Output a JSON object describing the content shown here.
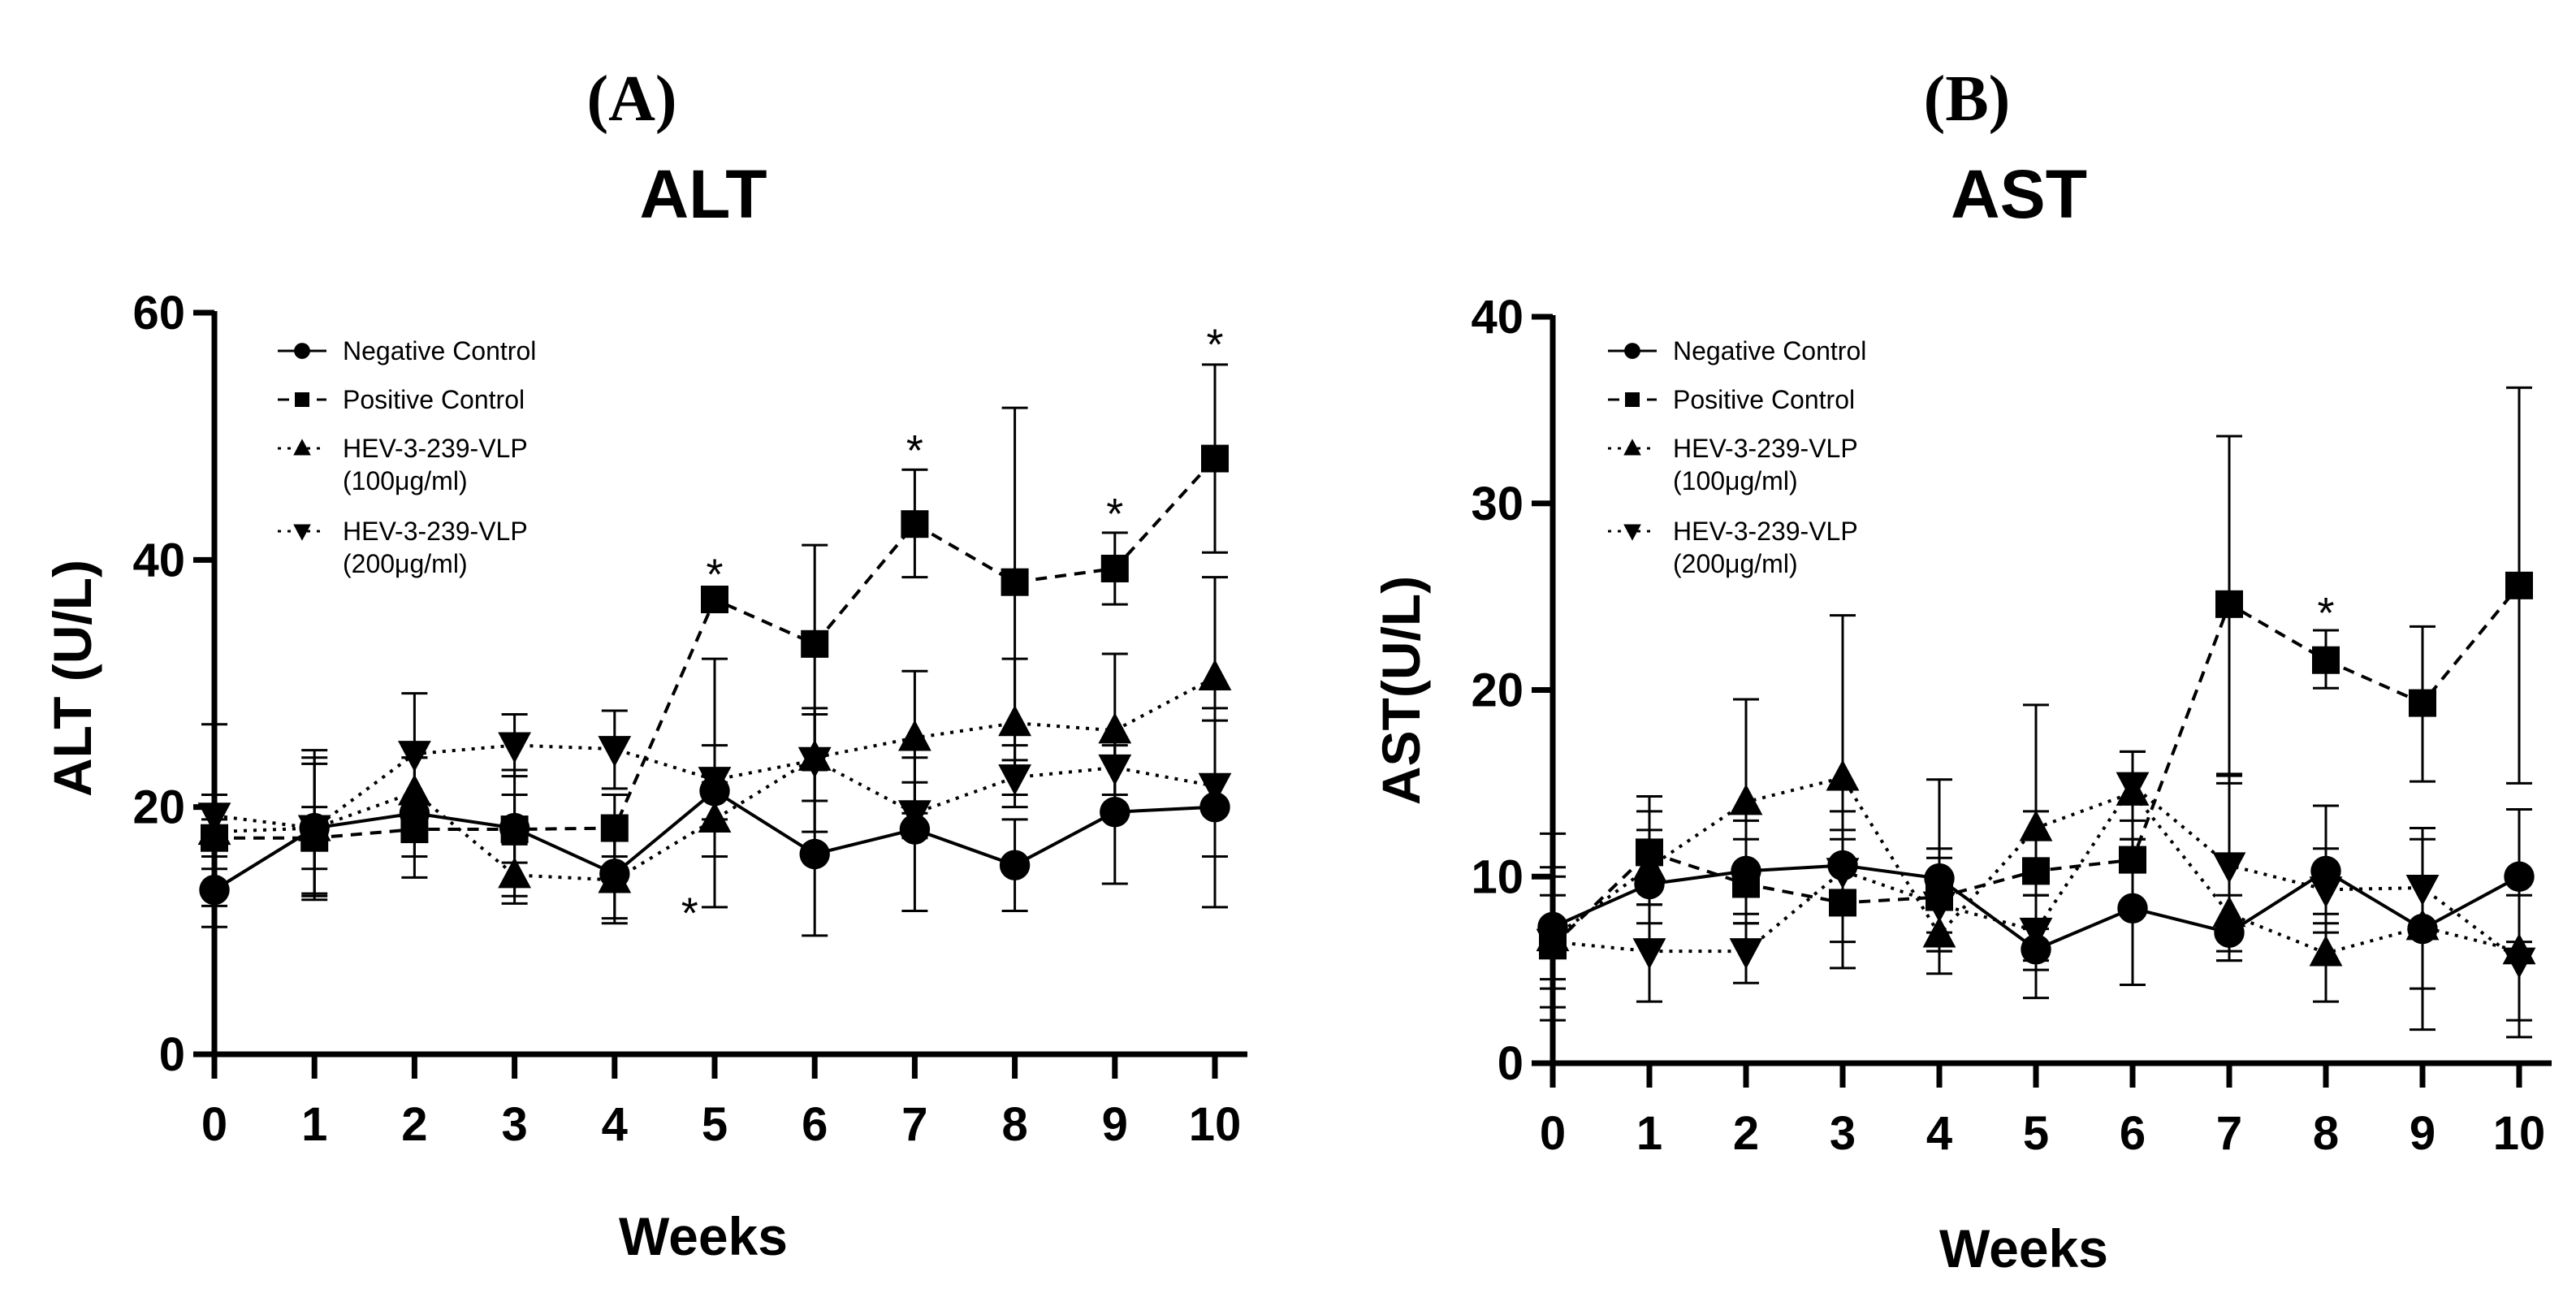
{
  "panels": [
    {
      "label": "(A)"
    },
    {
      "label": "(B)"
    }
  ],
  "chart_data": [
    {
      "type": "line",
      "title": "ALT",
      "xlabel": "Weeks",
      "ylabel": "ALT (U/L)",
      "x": [
        0,
        1,
        2,
        3,
        4,
        5,
        6,
        7,
        8,
        9,
        10
      ],
      "xlim": [
        -0.5,
        10.5
      ],
      "ylim": [
        0,
        60
      ],
      "yticks": [
        0,
        20,
        40,
        60
      ],
      "grid": false,
      "legend_position": "top-left",
      "series": [
        {
          "name": "Negative Control",
          "marker": "circle",
          "line": "solid",
          "values": [
            13.3,
            18.3,
            19.5,
            18.3,
            14.6,
            21.3,
            16.2,
            18.2,
            15.3,
            19.6,
            20.0
          ],
          "err_low": [
            10.3,
            12.8,
            14.3,
            12.8,
            10.6,
            11.9,
            9.6,
            11.6,
            11.6,
            13.8,
            11.9
          ],
          "err_high": [
            16.0,
            24.0,
            24.0,
            23.0,
            18.5,
            32.0,
            23.0,
            24.0,
            19.0,
            25.0,
            28.0
          ]
        },
        {
          "name": "Positive Control",
          "marker": "square",
          "line": "dashed",
          "values": [
            17.5,
            17.5,
            18.2,
            18.2,
            18.3,
            36.8,
            33.2,
            42.9,
            38.2,
            39.3,
            48.2
          ],
          "err_low": [
            16.0,
            15.0,
            16.0,
            15.5,
            16.0,
            36.0,
            24.5,
            38.6,
            23.8,
            36.4,
            40.6
          ],
          "err_high": [
            19.0,
            20.0,
            20.5,
            21.0,
            21.0,
            37.5,
            41.2,
            47.3,
            52.3,
            42.2,
            55.8
          ]
        },
        {
          "name": "HEV-3-239-VLP\n(100μg/ml)",
          "marker": "triangle-up",
          "line": "dotted",
          "values": [
            18.0,
            18.3,
            21.2,
            14.5,
            14.1,
            19.0,
            24.0,
            25.6,
            26.8,
            26.2,
            30.5
          ],
          "err_low": [
            15.0,
            13.0,
            18.5,
            12.2,
            11.0,
            16.0,
            18.0,
            19.5,
            21.0,
            20.0,
            22.5
          ],
          "err_high": [
            21.0,
            23.5,
            24.0,
            17.0,
            17.5,
            22.0,
            28.0,
            31.0,
            32.0,
            32.4,
            38.6
          ]
        },
        {
          "name": "HEV-3-239-VLP\n(200μg/ml)",
          "marker": "triangle-down",
          "line": "dotted",
          "values": [
            19.3,
            18.3,
            24.3,
            25.0,
            24.7,
            22.2,
            23.8,
            19.5,
            22.4,
            23.2,
            21.7
          ],
          "err_low": [
            12.0,
            12.5,
            19.5,
            22.5,
            21.5,
            19.0,
            20.5,
            17.5,
            20.0,
            21.0,
            16.0
          ],
          "err_high": [
            26.7,
            24.6,
            29.2,
            27.5,
            27.8,
            25.0,
            27.5,
            22.0,
            25.0,
            25.5,
            27.0
          ]
        }
      ],
      "annotations": [
        {
          "text": "*",
          "x": 5,
          "y": 40.0
        },
        {
          "text": "*",
          "x": 4.75,
          "y": 12.6
        },
        {
          "text": "*",
          "x": 7,
          "y": 50.0
        },
        {
          "text": "*",
          "x": 9,
          "y": 44.9
        },
        {
          "text": "*",
          "x": 10,
          "y": 58.6
        }
      ]
    },
    {
      "type": "line",
      "title": "AST",
      "xlabel": "Weeks",
      "ylabel": "AST(U/L)",
      "x": [
        0,
        1,
        2,
        3,
        4,
        5,
        6,
        7,
        8,
        9,
        10
      ],
      "xlim": [
        -0.5,
        10.5
      ],
      "ylim": [
        0,
        40
      ],
      "yticks": [
        0,
        10,
        20,
        30,
        40
      ],
      "grid": false,
      "legend_position": "top-left",
      "series": [
        {
          "name": "Negative Control",
          "marker": "circle",
          "line": "solid",
          "values": [
            7.3,
            9.6,
            10.3,
            10.6,
            9.9,
            6.1,
            8.3,
            7.0,
            10.3,
            7.2,
            10.0
          ],
          "err_low": [
            4.5,
            6.5,
            7.5,
            8.0,
            7.0,
            3.5,
            4.2,
            5.5,
            7.0,
            1.8,
            6.5
          ],
          "err_high": [
            10.5,
            12.5,
            13.0,
            13.5,
            15.2,
            9.0,
            12.0,
            9.0,
            13.8,
            12.6,
            13.6
          ]
        },
        {
          "name": "Positive Control",
          "marker": "square",
          "line": "dashed",
          "values": [
            6.3,
            11.3,
            9.6,
            8.6,
            8.9,
            10.3,
            10.9,
            24.6,
            21.6,
            19.3,
            25.6
          ],
          "err_low": [
            2.3,
            8.5,
            6.5,
            5.1,
            6.0,
            7.2,
            8.0,
            15.4,
            20.1,
            15.1,
            15.0
          ],
          "err_high": [
            10.0,
            14.3,
            12.0,
            12.0,
            11.5,
            13.5,
            14.0,
            33.6,
            23.2,
            23.4,
            36.2
          ]
        },
        {
          "name": "HEV-3-239-VLP\n(100μg/ml)",
          "marker": "triangle-up",
          "line": "dotted",
          "values": [
            6.7,
            10.5,
            14.0,
            15.3,
            6.9,
            12.6,
            14.5,
            8.0,
            5.9,
            7.3,
            6.0
          ],
          "err_low": [
            3.0,
            7.5,
            8.0,
            6.5,
            4.8,
            5.0,
            12.0,
            5.5,
            3.3,
            4.0,
            1.4
          ],
          "err_high": [
            12.3,
            13.5,
            19.5,
            24.0,
            9.0,
            19.2,
            16.7,
            15.0,
            8.0,
            10.0,
            10.0
          ]
        },
        {
          "name": "HEV-3-239-VLP\n(200μg/ml)",
          "marker": "triangle-down",
          "line": "dotted",
          "values": [
            6.5,
            6.0,
            6.0,
            10.3,
            8.5,
            7.1,
            14.9,
            10.6,
            9.3,
            9.4,
            5.5
          ],
          "err_low": [
            4.0,
            3.3,
            4.3,
            8.5,
            6.0,
            5.5,
            13.0,
            6.0,
            7.5,
            7.0,
            2.3
          ],
          "err_high": [
            9.0,
            8.5,
            7.5,
            12.5,
            11.0,
            9.0,
            16.7,
            15.5,
            11.5,
            12.0,
            9.0
          ]
        }
      ],
      "annotations": [
        {
          "text": "*",
          "x": 8,
          "y": 24.9
        }
      ]
    }
  ]
}
